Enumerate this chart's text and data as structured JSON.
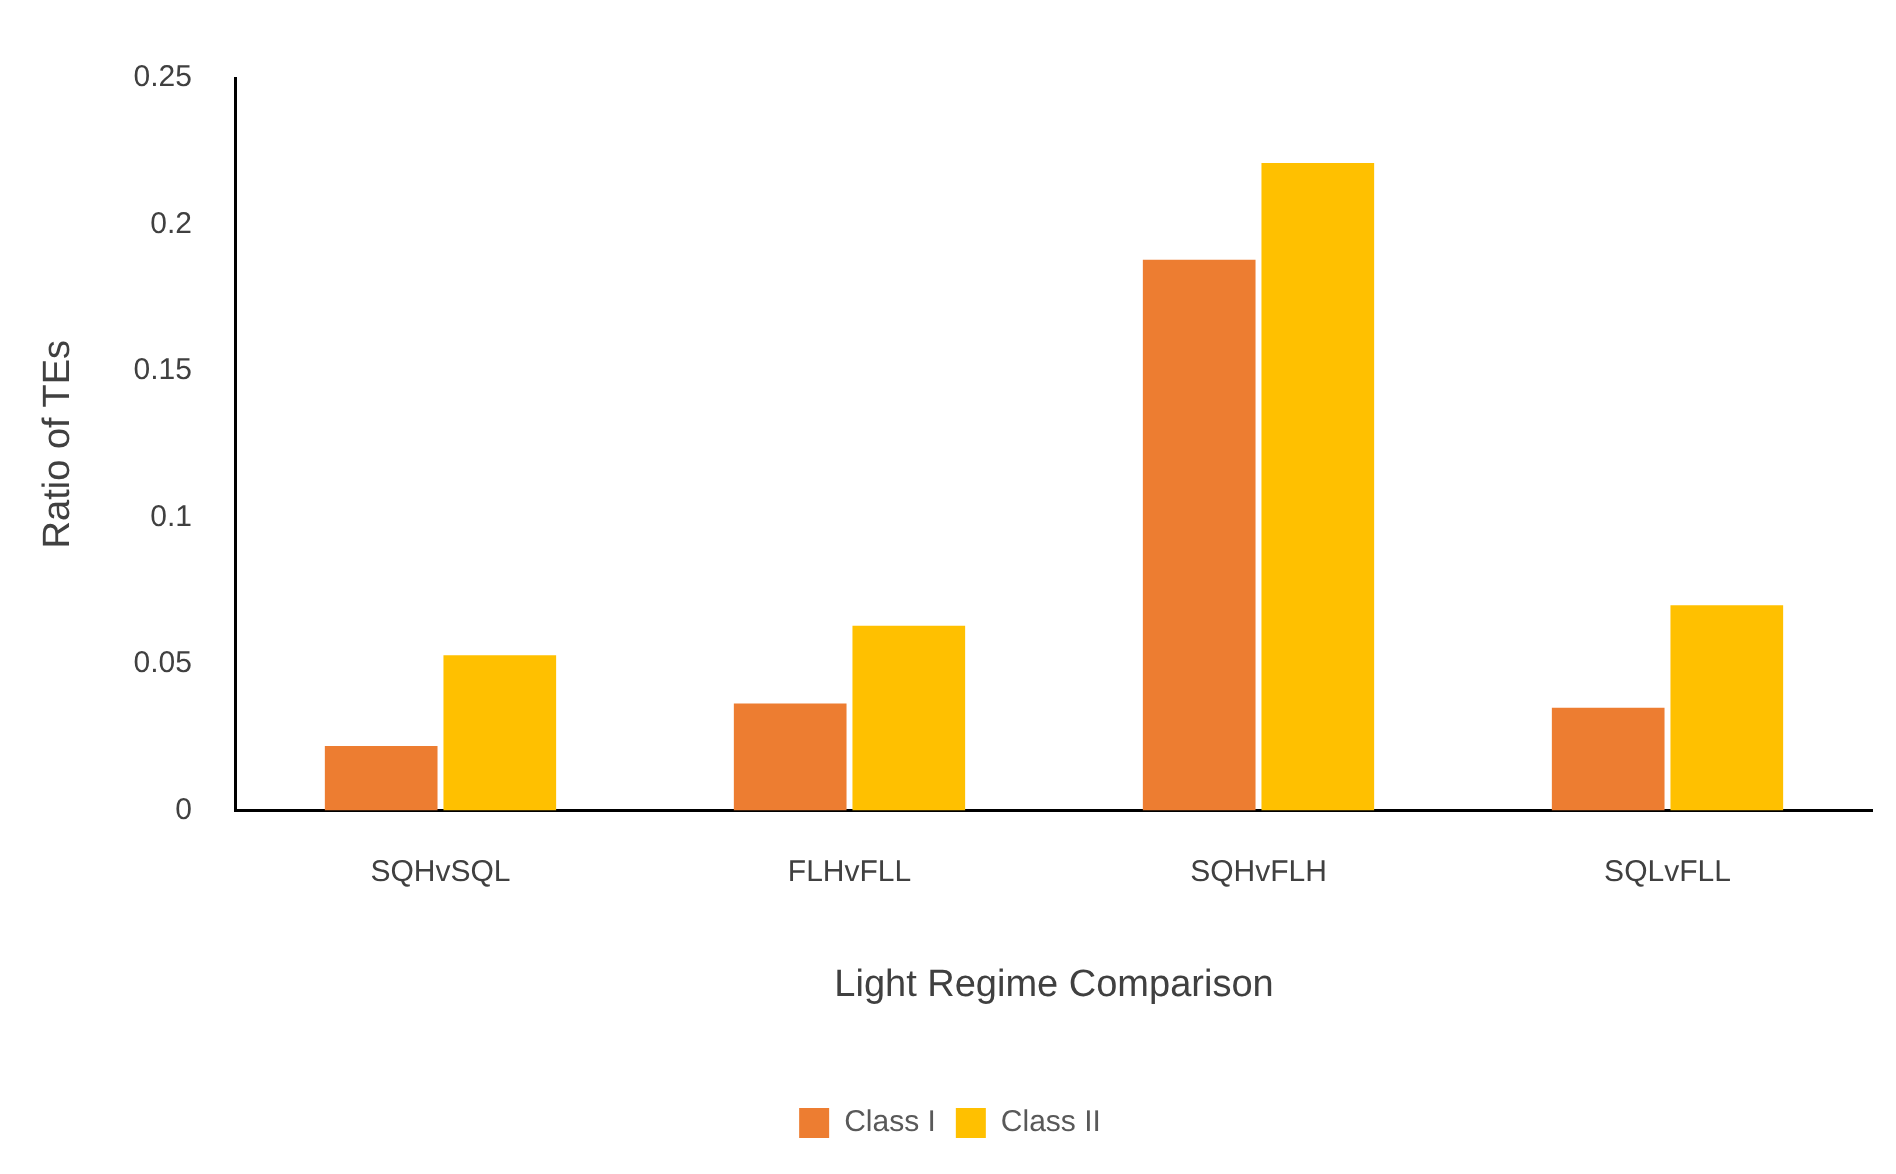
{
  "chart_data": {
    "type": "bar",
    "xlabel": "Light Regime Comparison",
    "ylabel": "Ratio of TEs",
    "categories": [
      "SQHvSQL",
      "FLHvFLL",
      "SQHvFLH",
      "SQLvFLL"
    ],
    "series": [
      {
        "name": "Class I",
        "color": "#ed7d31",
        "values": [
          0.022,
          0.0365,
          0.188,
          0.035
        ]
      },
      {
        "name": "Class II",
        "color": "#ffc000",
        "values": [
          0.053,
          0.063,
          0.221,
          0.07
        ]
      }
    ],
    "ylim": [
      0,
      0.25
    ],
    "yticks": [
      0,
      0.05,
      0.1,
      0.15,
      0.2,
      0.25
    ],
    "grid": false,
    "legend": "bottom"
  }
}
